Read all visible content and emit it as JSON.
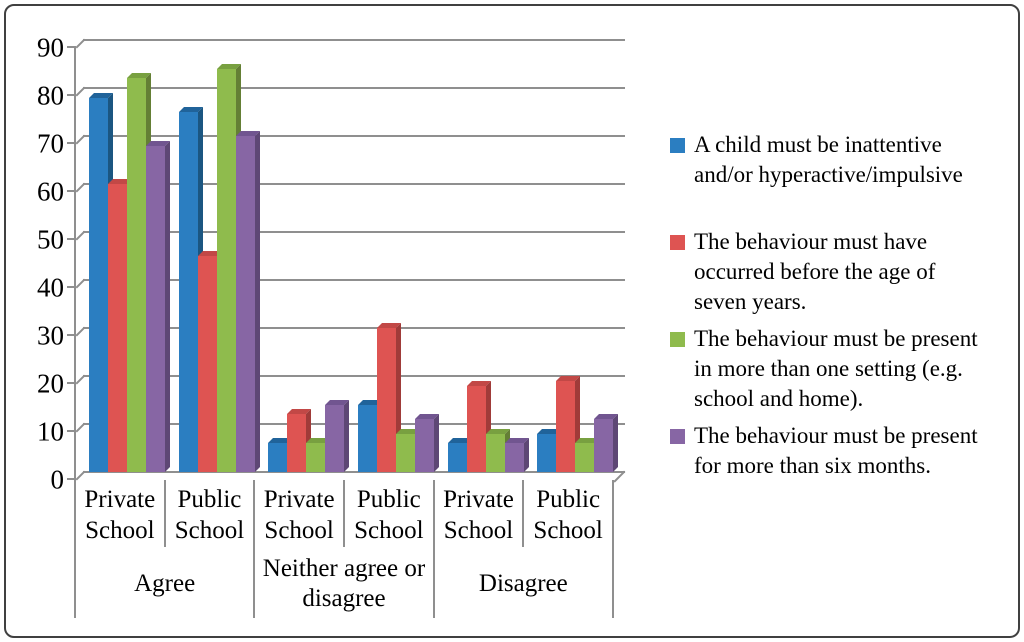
{
  "figure": {
    "background": "#ffffff",
    "border_color": "#404040"
  },
  "chart_data": {
    "type": "bar",
    "style": "3d-clustered-column",
    "title": "",
    "xlabel": "",
    "ylabel": "",
    "ylim": [
      0,
      90
    ],
    "y_ticks": [
      0,
      10,
      20,
      30,
      40,
      50,
      60,
      70,
      80,
      90
    ],
    "grid": "horizontal",
    "grid_color": "#8f8f8f",
    "legend_position": "right",
    "groups": [
      {
        "label": "Agree",
        "cells": [
          "Private\nSchool",
          "Public\nSchool"
        ]
      },
      {
        "label": "Neither agree or\ndisagree",
        "cells": [
          "Private\nSchool",
          "Public\nSchool"
        ]
      },
      {
        "label": "Disagree",
        "cells": [
          "Private\nSchool",
          "Public\nSchool"
        ]
      }
    ],
    "categories": [
      "Agree / Private School",
      "Agree / Public School",
      "Neither agree or disagree / Private School",
      "Neither agree or disagree / Public School",
      "Disagree / Private School",
      "Disagree / Public School"
    ],
    "series": [
      {
        "name": "A child must be inattentive\nand/or hyperactive/impulsive",
        "color": "#2b7ec1",
        "side_color": "#1b5681",
        "top_color": "#20639a",
        "values": [
          78,
          75,
          6,
          14,
          6,
          8
        ]
      },
      {
        "name": "The behaviour must have\noccurred before the age of\nseven years.",
        "color": "#de5452",
        "side_color": "#a03b39",
        "top_color": "#c24846",
        "values": [
          60,
          45,
          12,
          30,
          18,
          19
        ]
      },
      {
        "name": "The behaviour must be present\nin more than one setting (e.g.\nschool and home).",
        "color": "#8fbb4d",
        "side_color": "#647f35",
        "top_color": "#78a040",
        "values": [
          82,
          84,
          6,
          8,
          8,
          6
        ]
      },
      {
        "name": "The behaviour must be present\nfor more than six months.",
        "color": "#8766a4",
        "side_color": "#5e4775",
        "top_color": "#715590",
        "values": [
          68,
          70,
          14,
          11,
          6,
          11
        ]
      }
    ]
  }
}
